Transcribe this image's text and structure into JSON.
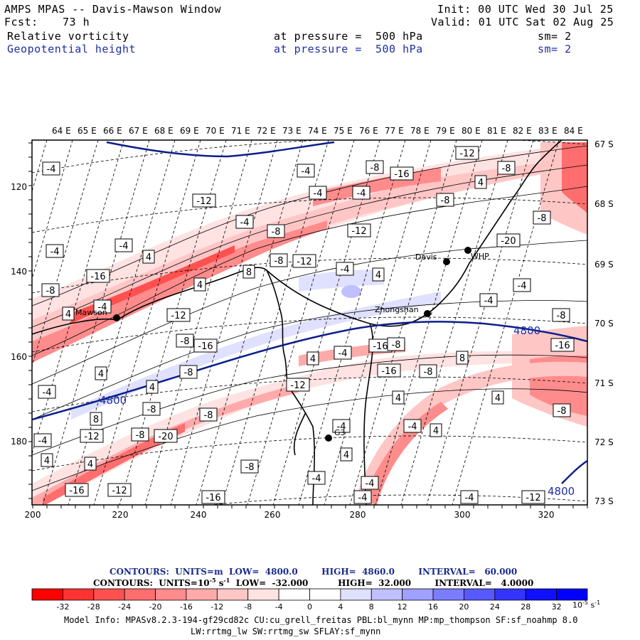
{
  "header": {
    "title": "AMPS MPAS -- Davis-Mawson Window",
    "init": "Init: 00 UTC Wed 30 Jul 25",
    "fcst_label": "Fcst:",
    "fcst_value": "73 h",
    "valid": "Valid: 01 UTC Sat 02 Aug 25",
    "field1": "Relative vorticity",
    "field1_pressure": "at pressure =  500 hPa",
    "field1_sm": "sm= 2",
    "field2": "Geopotential height",
    "field2_pressure": "at pressure =  500 hPa",
    "field2_sm": "sm= 2"
  },
  "map": {
    "top_lon_labels": [
      "64 E",
      "65 E",
      "66 E",
      "67 E",
      "68 E",
      "69 E",
      "70 E",
      "71 E",
      "72 E",
      "73 E",
      "74 E",
      "75 E",
      "76 E",
      "77 E",
      "78 E",
      "79 E",
      "80 E",
      "81 E",
      "82 E",
      "83 E",
      "84 E"
    ],
    "right_lat_labels": [
      "67 S",
      "68 S",
      "69 S",
      "70 S",
      "71 S",
      "72 S",
      "73 S"
    ],
    "left_y_labels": [
      "120",
      "140",
      "160",
      "180"
    ],
    "bottom_x_labels": [
      "200",
      "220",
      "240",
      "260",
      "280",
      "300",
      "320"
    ],
    "stations": [
      {
        "name": "Davis"
      },
      {
        "name": "WHP"
      },
      {
        "name": "Zhongshan"
      },
      {
        "name": "Mawson"
      },
      {
        "name": "G3"
      }
    ],
    "height_labels": [
      "4800",
      "4800",
      "4800"
    ],
    "vort_labels": [
      "-4",
      "-4",
      "-8",
      "-16",
      "-12",
      "-8",
      "-4",
      "-12",
      "-8",
      "4",
      "-4",
      "-8",
      "-20",
      "-4",
      "-8",
      "-12",
      "-4",
      "4",
      "-4",
      "-16",
      "-8",
      "-12",
      "-4",
      "4",
      "-8",
      "-4",
      "4",
      "4",
      "8",
      "-4",
      "-4",
      "-8",
      "-12",
      "-16",
      "4",
      "-8",
      "4",
      "-4",
      "-12",
      "-20",
      "-8",
      "-8",
      "-16",
      "-12",
      "8",
      "-8",
      "-16",
      "4",
      "-4",
      "-16",
      "-8",
      "-12",
      "-8",
      "8",
      "4",
      "-8",
      "4",
      "-16",
      "-12",
      "-8",
      "4",
      "4",
      "-4",
      "-12",
      "-16",
      "-4",
      "-4",
      "-4",
      "-4",
      "-16",
      "-12",
      "-4",
      "-4",
      "4",
      "4",
      "-8",
      "-4"
    ]
  },
  "contours": {
    "line1": "CONTOURS:  UNITS=m  LOW=  4800.0        HIGH=  4860.0        INTERVAL=   60.000",
    "line2_a": "CONTOURS:  UNITS=10",
    "line2_sup": "-5",
    "line2_b": " s",
    "line2_sup2": "-1",
    "line2_c": "  LOW=  -32.000          HIGH=  32.000        INTERVAL=   4.0000"
  },
  "colorbar": {
    "labels": [
      "-32",
      "-28",
      "-24",
      "-20",
      "-16",
      "-12",
      "-8",
      "-4",
      "0",
      "4",
      "8",
      "12",
      "16",
      "20",
      "24",
      "28",
      "32"
    ],
    "unit_label": "10",
    "unit_sup": "-5",
    "unit_s": " s",
    "unit_sup2": "-1",
    "colors": [
      "#ff0000",
      "#ff3232",
      "#ff5050",
      "#ff6e6e",
      "#ff8c8c",
      "#ffaaaa",
      "#ffc6c6",
      "#ffe2e2",
      "#ffffff",
      "#ffffff",
      "#e0e0ff",
      "#c0c0ff",
      "#a0a0ff",
      "#7c7cff",
      "#5858ff",
      "#3434ff",
      "#1010ff",
      "#0000ff"
    ]
  },
  "footer": {
    "line1": "Model Info: MPASv8.2.3-194-gf29cd82c CU:cu_grell_freitas PBL:bl_mynn MP:mp_thompson SF:sf_noahmp 8.0",
    "line2": "LW:rrtmg_lw SW:rrtmg_sw SFLAY:sf_mynn"
  }
}
